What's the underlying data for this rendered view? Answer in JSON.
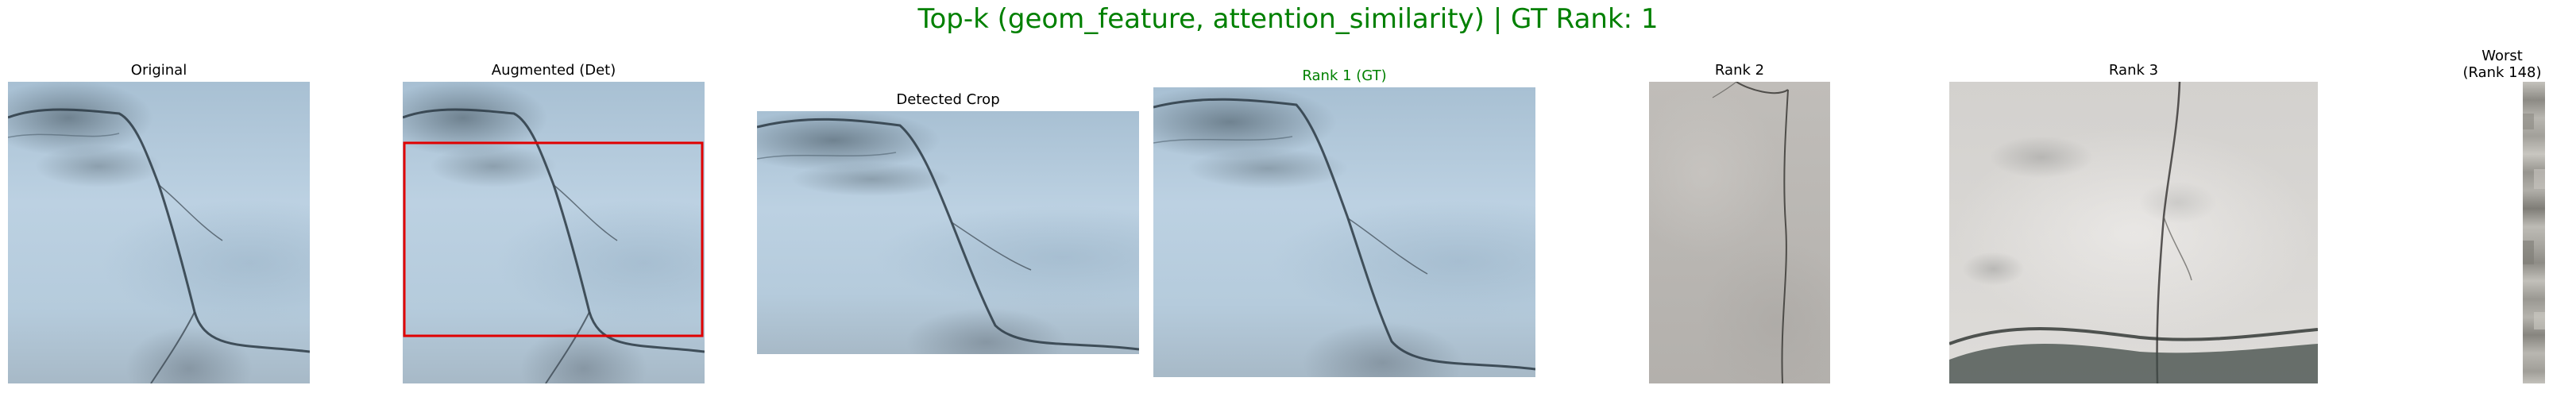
{
  "figure": {
    "suptitle": "Top-k (geom_feature, attention_similarity) | GT Rank: 1",
    "title_color": "#008000"
  },
  "panels": [
    {
      "key": "original",
      "title": "Original",
      "texture": "blue-cracked-concrete"
    },
    {
      "key": "augmented",
      "title": "Augmented (Det)",
      "texture": "blue-cracked-concrete",
      "box_color": "#e00000"
    },
    {
      "key": "detected",
      "title": "Detected Crop",
      "texture": "blue-cracked-concrete"
    },
    {
      "key": "rank1",
      "title": "Rank 1 (GT)",
      "texture": "blue-cracked-concrete",
      "title_color": "#008000"
    },
    {
      "key": "rank2",
      "title": "Rank 2",
      "texture": "grey-concrete-crack"
    },
    {
      "key": "rank3",
      "title": "Rank 3",
      "texture": "white-plaster-crack"
    },
    {
      "key": "worst",
      "title_line1": "Worst",
      "title_line2": "(Rank 148)",
      "texture": "thin-pixel-strip"
    }
  ]
}
